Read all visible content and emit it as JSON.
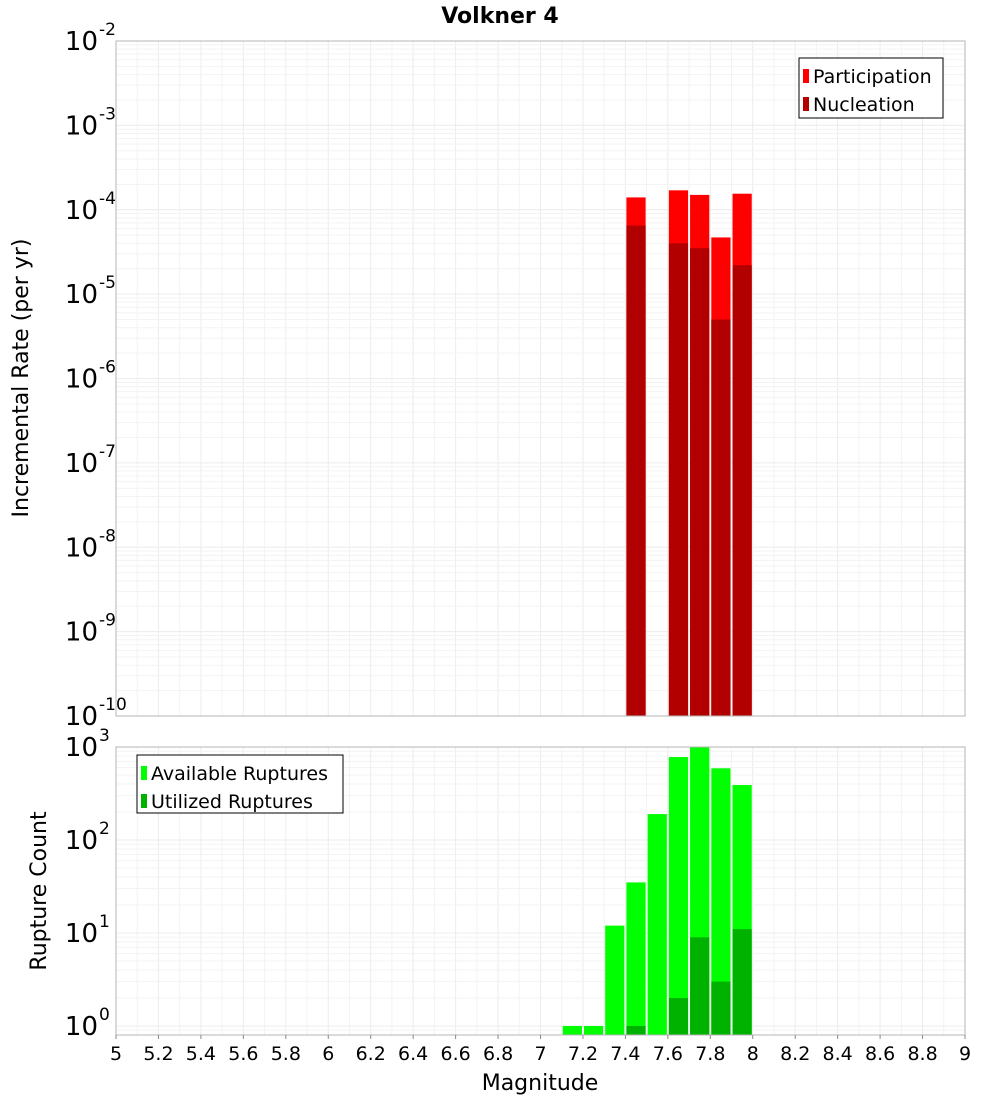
{
  "chart_data": [
    {
      "type": "bar",
      "title": "Volkner 4",
      "ylabel": "Incremental Rate (per yr)",
      "yscale": "log",
      "ylim": [
        1e-10,
        0.01
      ],
      "xlim": [
        5,
        9
      ],
      "bar_width": 0.1,
      "legend_position": "top-right",
      "yticks": [
        {
          "base": "10",
          "exp": "-10"
        },
        {
          "base": "10",
          "exp": "-9"
        },
        {
          "base": "10",
          "exp": "-8"
        },
        {
          "base": "10",
          "exp": "-7"
        },
        {
          "base": "10",
          "exp": "-6"
        },
        {
          "base": "10",
          "exp": "-5"
        },
        {
          "base": "10",
          "exp": "-4"
        },
        {
          "base": "10",
          "exp": "-3"
        },
        {
          "base": "10",
          "exp": "-2"
        }
      ],
      "series": [
        {
          "name": "Participation",
          "color": "#ff0000",
          "x": [
            7.45,
            7.65,
            7.75,
            7.85,
            7.95
          ],
          "values": [
            0.00014,
            0.00017,
            0.00015,
            4.7e-05,
            0.000155
          ]
        },
        {
          "name": "Nucleation",
          "color": "#b20000",
          "x": [
            7.45,
            7.65,
            7.75,
            7.85,
            7.95
          ],
          "values": [
            6.5e-05,
            4e-05,
            3.5e-05,
            5e-06,
            2.2e-05
          ]
        }
      ]
    },
    {
      "type": "bar",
      "xlabel": "Magnitude",
      "ylabel": "Rupture Count",
      "yscale": "log",
      "ylim": [
        0.8,
        1000
      ],
      "xlim": [
        5,
        9
      ],
      "bar_width": 0.1,
      "legend_position": "top-left",
      "yticks": [
        {
          "base": "10",
          "exp": "0",
          "value": 1
        },
        {
          "base": "10",
          "exp": "1",
          "value": 10
        },
        {
          "base": "10",
          "exp": "2",
          "value": 100
        },
        {
          "base": "10",
          "exp": "3",
          "value": 1000
        }
      ],
      "xticks": [
        "5",
        "5.2",
        "5.4",
        "5.6",
        "5.8",
        "6",
        "6.2",
        "6.4",
        "6.6",
        "6.8",
        "7",
        "7.2",
        "7.4",
        "7.6",
        "7.8",
        "8",
        "8.2",
        "8.4",
        "8.6",
        "8.8",
        "9"
      ],
      "series": [
        {
          "name": "Available Ruptures",
          "color": "#00ff00",
          "x": [
            7.15,
            7.25,
            7.35,
            7.45,
            7.55,
            7.65,
            7.75,
            7.85,
            7.95
          ],
          "values": [
            1,
            1,
            12,
            35,
            190,
            780,
            1000,
            590,
            390
          ]
        },
        {
          "name": "Utilized Ruptures",
          "color": "#00b200",
          "x": [
            7.45,
            7.65,
            7.75,
            7.85,
            7.95
          ],
          "values": [
            1,
            2,
            9,
            3,
            11
          ]
        }
      ]
    }
  ]
}
